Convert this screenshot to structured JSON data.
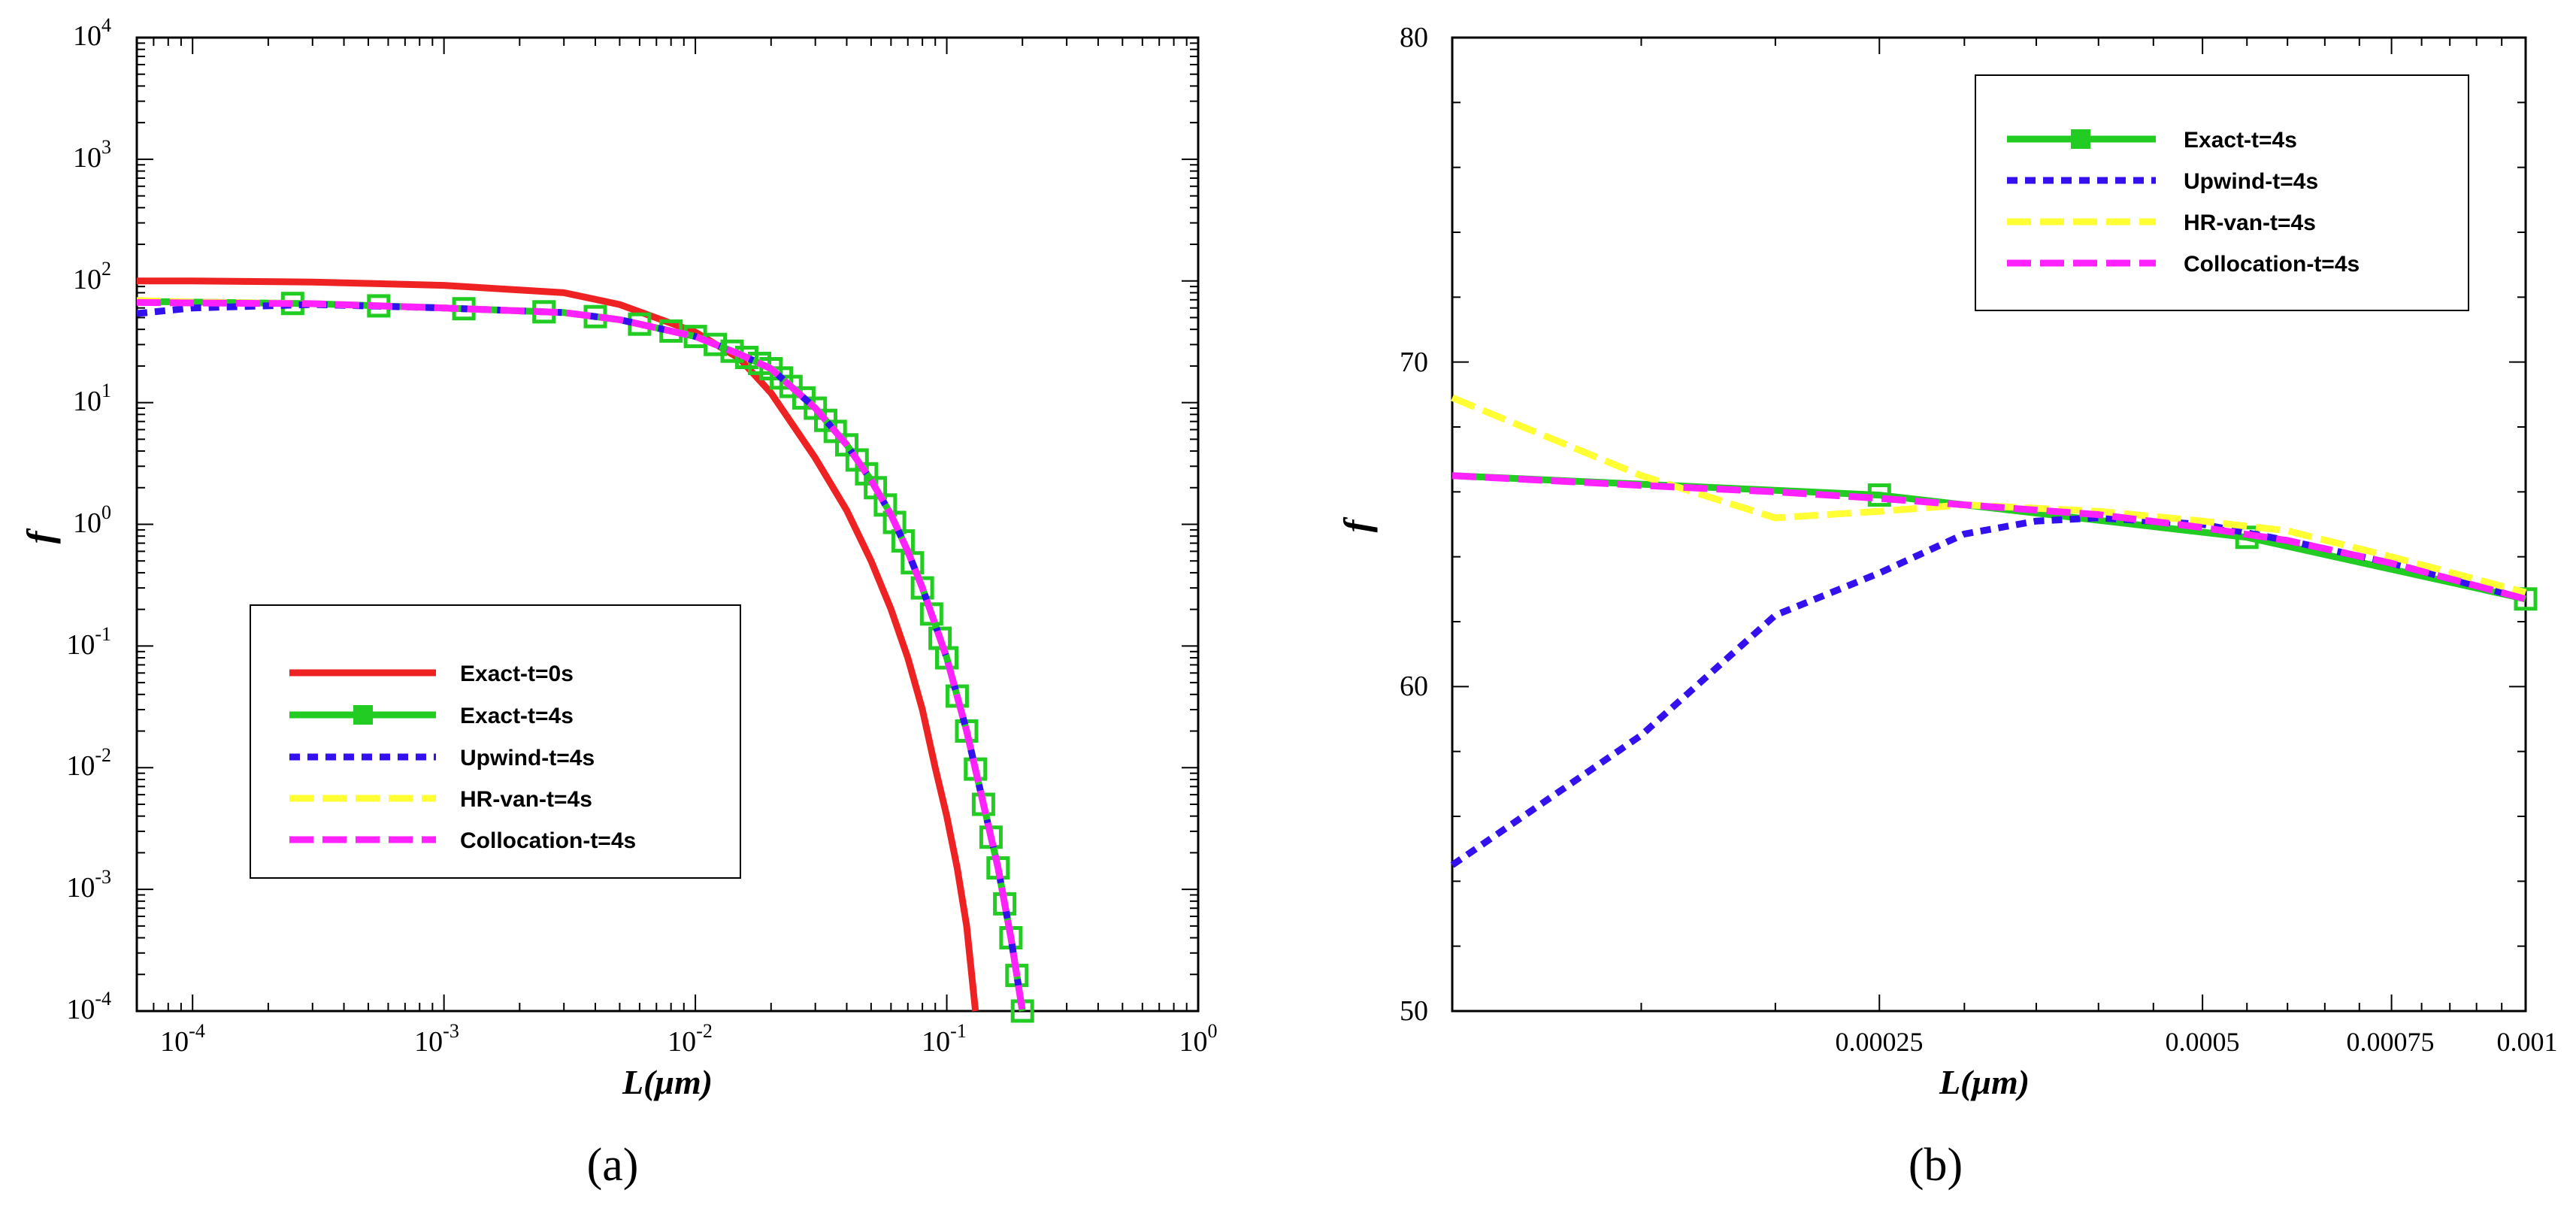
{
  "chart_data": [
    {
      "panel_label": "(a)",
      "type": "line",
      "xscale": "log",
      "yscale": "log",
      "xlim": [
        6e-05,
        1
      ],
      "ylim": [
        0.0001,
        10000
      ],
      "xlabel": "L(μm)",
      "ylabel": "f",
      "x_ticks": [
        {
          "value": 0.0001,
          "base": "10",
          "exp": "-4"
        },
        {
          "value": 0.001,
          "base": "10",
          "exp": "-3"
        },
        {
          "value": 0.01,
          "base": "10",
          "exp": "-2"
        },
        {
          "value": 0.1,
          "base": "10",
          "exp": "-1"
        },
        {
          "value": 1,
          "base": "10",
          "exp": "0"
        }
      ],
      "y_ticks": [
        {
          "value": 0.0001,
          "base": "10",
          "exp": "-4"
        },
        {
          "value": 0.001,
          "base": "10",
          "exp": "-3"
        },
        {
          "value": 0.01,
          "base": "10",
          "exp": "-2"
        },
        {
          "value": 0.1,
          "base": "10",
          "exp": "-1"
        },
        {
          "value": 1,
          "base": "10",
          "exp": "0"
        },
        {
          "value": 10,
          "base": "10",
          "exp": "1"
        },
        {
          "value": 100,
          "base": "10",
          "exp": "2"
        },
        {
          "value": 1000,
          "base": "10",
          "exp": "3"
        },
        {
          "value": 10000,
          "base": "10",
          "exp": "4"
        }
      ],
      "legend_position": "center-left",
      "series": [
        {
          "name": "Exact-t=0s",
          "color": "#ee2222",
          "style": "solid",
          "marker": "none",
          "x": [
            6e-05,
            0.0001,
            0.0003,
            0.001,
            0.003,
            0.005,
            0.01,
            0.015,
            0.02,
            0.03,
            0.04,
            0.05,
            0.06,
            0.07,
            0.08,
            0.09,
            0.1,
            0.11,
            0.12,
            0.13
          ],
          "y": [
            100,
            100,
            98,
            92,
            80,
            64,
            38,
            23,
            12,
            3.5,
            1.3,
            0.5,
            0.2,
            0.08,
            0.03,
            0.01,
            0.004,
            0.0015,
            0.0005,
            0.0001
          ]
        },
        {
          "name": "Exact-t=4s",
          "color": "#22cc22",
          "style": "solid",
          "marker": "square",
          "x": [
            6e-05,
            0.0001,
            0.0003,
            0.001,
            0.003,
            0.005,
            0.01,
            0.015,
            0.02,
            0.03,
            0.04,
            0.05,
            0.06,
            0.07,
            0.08,
            0.09,
            0.1,
            0.12,
            0.14,
            0.16,
            0.18,
            0.2
          ],
          "y": [
            68,
            67,
            65,
            60,
            55,
            48,
            35,
            25,
            19,
            9,
            4.5,
            2.3,
            1.2,
            0.6,
            0.3,
            0.15,
            0.08,
            0.02,
            0.005,
            0.0015,
            0.0004,
            0.0001
          ],
          "marker_x": [
            0.00025,
            0.00055,
            0.0012,
            0.0025,
            0.004,
            0.006,
            0.008,
            0.01,
            0.012,
            0.014,
            0.016,
            0.018,
            0.02,
            0.022,
            0.024,
            0.027,
            0.03,
            0.033,
            0.036,
            0.04,
            0.044,
            0.048,
            0.052,
            0.057,
            0.062,
            0.067,
            0.073,
            0.08,
            0.087,
            0.094,
            0.1,
            0.11,
            0.12,
            0.13,
            0.14,
            0.15,
            0.16,
            0.17,
            0.18,
            0.19,
            0.2
          ]
        },
        {
          "name": "Upwind-t=4s",
          "color": "#3311ee",
          "style": "dotted",
          "marker": "none",
          "x": [
            6e-05,
            0.0001,
            0.0003,
            0.001,
            0.003,
            0.005,
            0.01,
            0.015,
            0.02,
            0.03,
            0.04,
            0.05,
            0.06,
            0.07,
            0.08,
            0.09,
            0.1,
            0.12,
            0.14,
            0.16,
            0.18,
            0.2
          ],
          "y": [
            54,
            60,
            64,
            60,
            55,
            48,
            35,
            25,
            19,
            9,
            4.5,
            2.3,
            1.2,
            0.6,
            0.3,
            0.15,
            0.08,
            0.02,
            0.005,
            0.0015,
            0.0004,
            0.0001
          ]
        },
        {
          "name": "HR-van-t=4s",
          "color": "#ffff33",
          "style": "dashed",
          "marker": "none",
          "x": [
            6e-05,
            0.0001,
            0.0003,
            0.001,
            0.003,
            0.005,
            0.01,
            0.015,
            0.02,
            0.03,
            0.04,
            0.05,
            0.06,
            0.07,
            0.08,
            0.09,
            0.1,
            0.12,
            0.14,
            0.16,
            0.18,
            0.2
          ],
          "y": [
            69,
            67,
            65,
            60,
            55,
            48,
            35,
            25,
            19,
            9,
            4.5,
            2.3,
            1.2,
            0.6,
            0.3,
            0.15,
            0.08,
            0.02,
            0.005,
            0.0015,
            0.0004,
            0.0001
          ]
        },
        {
          "name": "Collocation-t=4s",
          "color": "#ff22ff",
          "style": "dashed",
          "marker": "none",
          "x": [
            6e-05,
            0.0001,
            0.0003,
            0.001,
            0.003,
            0.005,
            0.01,
            0.015,
            0.02,
            0.03,
            0.04,
            0.05,
            0.06,
            0.07,
            0.08,
            0.09,
            0.1,
            0.12,
            0.14,
            0.16,
            0.18,
            0.2
          ],
          "y": [
            66.5,
            66,
            65,
            60,
            55,
            48,
            35,
            25,
            19,
            9,
            4.5,
            2.3,
            1.2,
            0.6,
            0.3,
            0.15,
            0.08,
            0.02,
            0.005,
            0.0015,
            0.0004,
            0.0001
          ]
        }
      ]
    },
    {
      "panel_label": "(b)",
      "type": "line",
      "xscale": "log",
      "yscale": "linear",
      "xlim": [
        0.0001,
        0.001
      ],
      "ylim": [
        50,
        80
      ],
      "xlabel": "L(μm)",
      "ylabel": "f",
      "x_ticks": [
        {
          "value": 0.00025,
          "label": "0.00025"
        },
        {
          "value": 0.0005,
          "label": "0.0005"
        },
        {
          "value": 0.00075,
          "label": "0.00075"
        },
        {
          "value": 0.001,
          "label": "0.001"
        }
      ],
      "y_ticks": [
        {
          "value": 50,
          "label": "50"
        },
        {
          "value": 60,
          "label": "60"
        },
        {
          "value": 70,
          "label": "70"
        },
        {
          "value": 80,
          "label": "80"
        }
      ],
      "legend_position": "top-right",
      "series": [
        {
          "name": "Exact-t=4s",
          "color": "#22cc22",
          "style": "solid",
          "marker": "square",
          "x": [
            0.0001,
            0.00025,
            0.00055,
            0.001
          ],
          "y": [
            66.5,
            65.9,
            64.6,
            62.7
          ],
          "marker_x": [
            0.00025,
            0.00055,
            0.001
          ]
        },
        {
          "name": "Upwind-t=4s",
          "color": "#3311ee",
          "style": "dotted",
          "marker": "none",
          "x": [
            0.0001,
            0.00015,
            0.0002,
            0.00025,
            0.0003,
            0.00035,
            0.0004,
            0.0005,
            0.0006,
            0.00075,
            0.001
          ],
          "y": [
            54.5,
            58.5,
            62.2,
            63.5,
            64.7,
            65.1,
            65.2,
            65,
            64.5,
            63.8,
            62.7
          ]
        },
        {
          "name": "HR-van-t=4s",
          "color": "#ffff33",
          "style": "dashed",
          "marker": "none",
          "x": [
            0.0001,
            0.00015,
            0.0002,
            0.00025,
            0.0003,
            0.0004,
            0.0005,
            0.0006,
            0.00075,
            0.001
          ],
          "y": [
            68.9,
            66.5,
            65.2,
            65.4,
            65.6,
            65.4,
            65.1,
            64.8,
            64,
            62.9
          ]
        },
        {
          "name": "Collocation-t=4s",
          "color": "#ff22ff",
          "style": "dashed",
          "marker": "none",
          "x": [
            0.0001,
            0.00015,
            0.0002,
            0.00025,
            0.0003,
            0.0004,
            0.0005,
            0.0006,
            0.00075,
            0.001
          ],
          "y": [
            66.5,
            66.2,
            66.0,
            65.8,
            65.6,
            65.3,
            64.9,
            64.5,
            63.8,
            62.7
          ]
        }
      ]
    }
  ]
}
